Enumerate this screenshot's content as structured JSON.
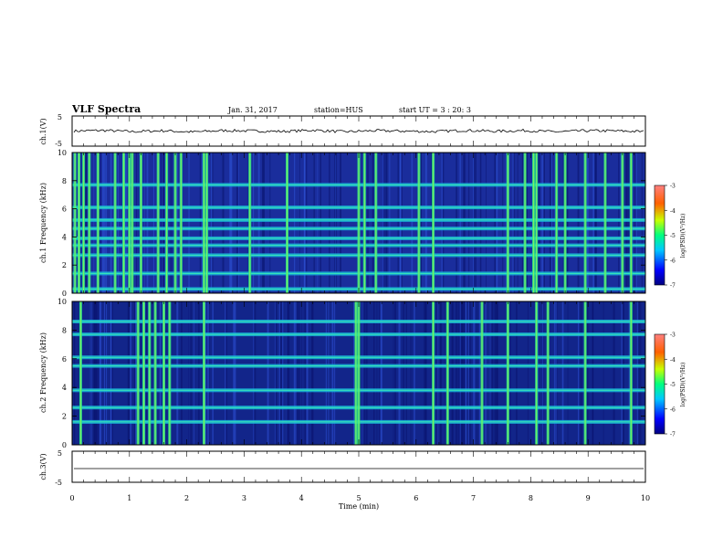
{
  "header": {
    "title": "VLF Spectra",
    "date": "Jan. 31, 2017",
    "station": "station=HUS",
    "start": "start UT = 3 : 20: 3"
  },
  "chart_data": [
    {
      "type": "line",
      "panel": "ch1-waveform",
      "ylabel": "ch.1(V)",
      "ylim": [
        -5,
        5
      ],
      "yticks": [
        "5",
        "-5"
      ],
      "series": [
        {
          "values": [
            0,
            0.4,
            -0.3,
            0.2,
            -0.5,
            0.3,
            0.1,
            -0.2,
            0.5,
            -0.4,
            0.2,
            0.0,
            -0.3,
            0.4,
            -0.1,
            0.3,
            -0.4,
            0.2,
            0.1,
            -0.3
          ]
        }
      ]
    },
    {
      "type": "heatmap",
      "panel": "ch1-spectrogram",
      "ylabel": "ch.1 Frequency (kHz)",
      "ylim": [
        0,
        10
      ],
      "yticks": [
        "0",
        "2",
        "4",
        "6",
        "8",
        "10"
      ],
      "colorbar": {
        "label": "log(PSD)(V²/Hz)",
        "range": [
          -7,
          -3
        ],
        "ticks": [
          "-3",
          "-4",
          "-5",
          "-6",
          "-7"
        ]
      },
      "bright_times_min": [
        0.05,
        0.12,
        0.2,
        0.3,
        0.45,
        0.75,
        0.9,
        1.0,
        1.05,
        1.2,
        1.5,
        1.65,
        1.8,
        1.9,
        2.3,
        2.35,
        3.1,
        3.75,
        5.0,
        5.1,
        5.3,
        6.05,
        6.3,
        7.6,
        7.9,
        8.05,
        8.1,
        8.45,
        8.6,
        8.95,
        9.3,
        9.6,
        9.75
      ],
      "bright_bands_khz": [
        0.3,
        1.4,
        2.7,
        3.4,
        3.9,
        4.6,
        5.2,
        6.1,
        7.7
      ]
    },
    {
      "type": "heatmap",
      "panel": "ch2-spectrogram",
      "ylabel": "ch.2 Frequency (kHz)",
      "ylim": [
        0,
        10
      ],
      "yticks": [
        "0",
        "2",
        "4",
        "6",
        "8",
        "10"
      ],
      "colorbar": {
        "label": "log(PSD)(V²/Hz)",
        "range": [
          -7,
          -3
        ],
        "ticks": [
          "-3",
          "-4",
          "-5",
          "-6",
          "-7"
        ]
      },
      "bright_times_min": [
        0.15,
        1.15,
        1.25,
        1.35,
        1.45,
        1.6,
        1.7,
        2.3,
        4.95,
        5.0,
        6.3,
        6.55,
        7.15,
        7.6,
        8.1,
        8.3,
        8.95,
        9.75
      ],
      "bright_bands_khz": [
        1.6,
        2.6,
        3.8,
        5.5,
        6.1,
        7.7,
        8.6
      ]
    },
    {
      "type": "line",
      "panel": "ch3-waveform",
      "ylabel": "ch.3(V)",
      "ylim": [
        -5,
        5
      ],
      "yticks": [
        "5",
        "-5"
      ],
      "xlabel": "Time (min)",
      "xlim": [
        0,
        10
      ],
      "xticks": [
        "0",
        "1",
        "2",
        "3",
        "4",
        "5",
        "6",
        "7",
        "8",
        "9",
        "10"
      ],
      "series": [
        {
          "values": [
            0,
            0
          ]
        }
      ]
    }
  ]
}
